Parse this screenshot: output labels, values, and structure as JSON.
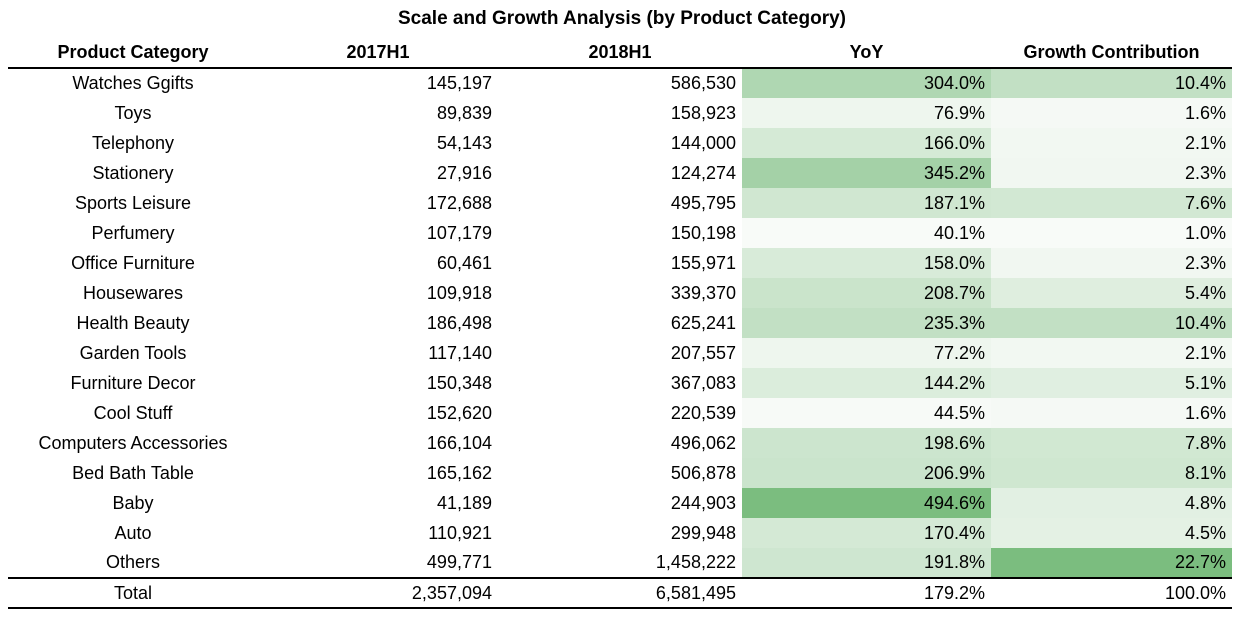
{
  "title": "Scale and Growth Analysis (by Product Category)",
  "columns": [
    "Product Category",
    "2017H1",
    "2018H1",
    "YoY",
    "Growth Contribution"
  ],
  "rows": [
    {
      "category": "Watches Ggifts",
      "h2017": "145,197",
      "h2018": "586,530",
      "yoy": "304.0%",
      "contribution": "10.4%"
    },
    {
      "category": "Toys",
      "h2017": "89,839",
      "h2018": "158,923",
      "yoy": "76.9%",
      "contribution": "1.6%"
    },
    {
      "category": "Telephony",
      "h2017": "54,143",
      "h2018": "144,000",
      "yoy": "166.0%",
      "contribution": "2.1%"
    },
    {
      "category": "Stationery",
      "h2017": "27,916",
      "h2018": "124,274",
      "yoy": "345.2%",
      "contribution": "2.3%"
    },
    {
      "category": "Sports Leisure",
      "h2017": "172,688",
      "h2018": "495,795",
      "yoy": "187.1%",
      "contribution": "7.6%"
    },
    {
      "category": "Perfumery",
      "h2017": "107,179",
      "h2018": "150,198",
      "yoy": "40.1%",
      "contribution": "1.0%"
    },
    {
      "category": "Office Furniture",
      "h2017": "60,461",
      "h2018": "155,971",
      "yoy": "158.0%",
      "contribution": "2.3%"
    },
    {
      "category": "Housewares",
      "h2017": "109,918",
      "h2018": "339,370",
      "yoy": "208.7%",
      "contribution": "5.4%"
    },
    {
      "category": "Health Beauty",
      "h2017": "186,498",
      "h2018": "625,241",
      "yoy": "235.3%",
      "contribution": "10.4%"
    },
    {
      "category": "Garden Tools",
      "h2017": "117,140",
      "h2018": "207,557",
      "yoy": "77.2%",
      "contribution": "2.1%"
    },
    {
      "category": "Furniture Decor",
      "h2017": "150,348",
      "h2018": "367,083",
      "yoy": "144.2%",
      "contribution": "5.1%"
    },
    {
      "category": "Cool Stuff",
      "h2017": "152,620",
      "h2018": "220,539",
      "yoy": "44.5%",
      "contribution": "1.6%"
    },
    {
      "category": "Computers Accessories",
      "h2017": "166,104",
      "h2018": "496,062",
      "yoy": "198.6%",
      "contribution": "7.8%"
    },
    {
      "category": "Bed Bath Table",
      "h2017": "165,162",
      "h2018": "506,878",
      "yoy": "206.9%",
      "contribution": "8.1%"
    },
    {
      "category": "Baby",
      "h2017": "41,189",
      "h2018": "244,903",
      "yoy": "494.6%",
      "contribution": "4.8%"
    },
    {
      "category": "Auto",
      "h2017": "110,921",
      "h2018": "299,948",
      "yoy": "170.4%",
      "contribution": "4.5%"
    },
    {
      "category": "Others",
      "h2017": "499,771",
      "h2018": "1,458,222",
      "yoy": "191.8%",
      "contribution": "22.7%"
    }
  ],
  "total": {
    "category": "Total",
    "h2017": "2,357,094",
    "h2018": "6,581,495",
    "yoy": "179.2%",
    "contribution": "100.0%"
  },
  "heat_colors": {
    "low": "#f8fbf8",
    "high": "#7bbd7f"
  }
}
